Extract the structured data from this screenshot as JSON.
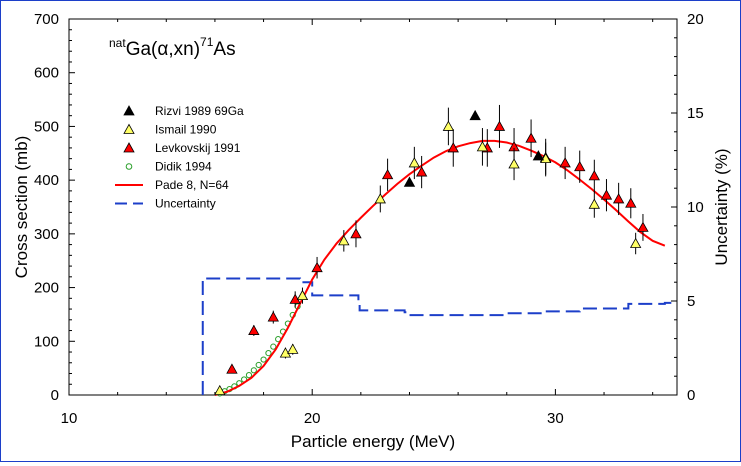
{
  "chart_data": {
    "type": "scatter",
    "title_parts": {
      "pre": "nat",
      "main": "Ga(α,xn)",
      "sup": "71",
      "post": "As"
    },
    "xlabel": "Particle energy (MeV)",
    "ylabel": "Cross section (mb)",
    "y2label": "Uncertainty (%)",
    "xlim": [
      10,
      35
    ],
    "ylim": [
      0,
      700
    ],
    "y2lim": [
      0,
      20
    ],
    "xticks": [
      "10",
      "20",
      "30"
    ],
    "yticks": [
      "0",
      "100",
      "200",
      "300",
      "400",
      "500",
      "600",
      "700"
    ],
    "y2ticks": [
      "0",
      "5",
      "10",
      "15",
      "20"
    ],
    "grid": false,
    "legend_position": "top-left",
    "colors": {
      "rizvi": "#000000",
      "ismail": "#ffff66",
      "levkovskij": "#ff0000",
      "didik": "#2ca02c",
      "pade": "#ff0000",
      "uncertainty": "#1c3fc9"
    },
    "series": [
      {
        "name": "Rizvi 1989 69Ga",
        "marker": "triangle-filled",
        "points": [
          [
            24.0,
            396
          ],
          [
            26.7,
            520
          ],
          [
            29.3,
            445
          ]
        ]
      },
      {
        "name": "Ismail 1990",
        "marker": "triangle-open-yellow",
        "points": [
          [
            16.2,
            8,
            5
          ],
          [
            18.9,
            78,
            10
          ],
          [
            19.2,
            85,
            10
          ],
          [
            19.6,
            185,
            15
          ],
          [
            21.3,
            287,
            20
          ],
          [
            22.8,
            365,
            25
          ],
          [
            24.2,
            432,
            30
          ],
          [
            25.6,
            500,
            35
          ],
          [
            27.0,
            462,
            35
          ],
          [
            28.3,
            430,
            30
          ],
          [
            29.6,
            440,
            30
          ],
          [
            31.6,
            355,
            25
          ],
          [
            33.3,
            282,
            20
          ]
        ]
      },
      {
        "name": "Levkovskij 1991",
        "marker": "triangle-filled-red",
        "points": [
          [
            16.7,
            48,
            5
          ],
          [
            17.6,
            120,
            10
          ],
          [
            18.4,
            145,
            12
          ],
          [
            19.3,
            178,
            15
          ],
          [
            20.2,
            237,
            20
          ],
          [
            21.8,
            300,
            25
          ],
          [
            23.1,
            410,
            30
          ],
          [
            24.5,
            415,
            30
          ],
          [
            25.8,
            460,
            35
          ],
          [
            27.2,
            460,
            35
          ],
          [
            27.7,
            500,
            40
          ],
          [
            28.3,
            462,
            35
          ],
          [
            29.0,
            478,
            35
          ],
          [
            29.6,
            442,
            35
          ],
          [
            30.4,
            432,
            30
          ],
          [
            31.0,
            425,
            30
          ],
          [
            31.6,
            408,
            30
          ],
          [
            32.1,
            372,
            30
          ],
          [
            32.6,
            365,
            30
          ],
          [
            33.1,
            357,
            28
          ],
          [
            33.6,
            312,
            25
          ]
        ]
      },
      {
        "name": "Didik 1994",
        "marker": "circle-open-green",
        "points": [
          [
            16.2,
            3
          ],
          [
            16.4,
            7
          ],
          [
            16.6,
            11
          ],
          [
            16.8,
            16
          ],
          [
            17.0,
            22
          ],
          [
            17.2,
            29
          ],
          [
            17.4,
            37
          ],
          [
            17.6,
            46
          ],
          [
            17.8,
            56
          ],
          [
            18.0,
            66
          ],
          [
            18.2,
            78
          ],
          [
            18.4,
            90
          ],
          [
            18.6,
            104
          ],
          [
            18.8,
            118
          ],
          [
            19.0,
            133
          ],
          [
            19.2,
            149
          ],
          [
            19.4,
            165
          ],
          [
            19.6,
            183
          ]
        ]
      },
      {
        "name": "Pade 8, N=64",
        "marker": "line-solid",
        "points": [
          [
            16.0,
            0
          ],
          [
            16.5,
            6
          ],
          [
            17.0,
            17
          ],
          [
            17.5,
            32
          ],
          [
            18.0,
            54
          ],
          [
            18.5,
            85
          ],
          [
            19.0,
            125
          ],
          [
            19.5,
            170
          ],
          [
            20.0,
            215
          ],
          [
            20.5,
            252
          ],
          [
            21.0,
            282
          ],
          [
            21.5,
            307
          ],
          [
            22.0,
            330
          ],
          [
            22.5,
            352
          ],
          [
            23.0,
            373
          ],
          [
            23.5,
            393
          ],
          [
            24.0,
            411
          ],
          [
            24.5,
            427
          ],
          [
            25.0,
            442
          ],
          [
            25.5,
            454
          ],
          [
            26.0,
            463
          ],
          [
            26.5,
            469
          ],
          [
            27.0,
            473
          ],
          [
            27.5,
            473
          ],
          [
            28.0,
            470
          ],
          [
            28.5,
            464
          ],
          [
            29.0,
            455
          ],
          [
            29.5,
            445
          ],
          [
            30.0,
            433
          ],
          [
            30.5,
            418
          ],
          [
            31.0,
            401
          ],
          [
            31.5,
            383
          ],
          [
            32.0,
            364
          ],
          [
            32.5,
            344
          ],
          [
            33.0,
            323
          ],
          [
            33.5,
            303
          ],
          [
            34.0,
            287
          ],
          [
            34.5,
            278
          ]
        ]
      },
      {
        "name": "Uncertainty",
        "marker": "line-dashed",
        "axis": "right",
        "points": [
          [
            15.5,
            0
          ],
          [
            15.5,
            6.2
          ],
          [
            19.5,
            6.2
          ],
          [
            19.5,
            6.0
          ],
          [
            20.0,
            6.0
          ],
          [
            20.0,
            5.3
          ],
          [
            21.9,
            5.3
          ],
          [
            21.9,
            5.0
          ],
          [
            21.95,
            5.0
          ],
          [
            21.95,
            4.5
          ],
          [
            23.8,
            4.5
          ],
          [
            23.8,
            4.4
          ],
          [
            23.9,
            4.4
          ],
          [
            23.9,
            4.25
          ],
          [
            28.0,
            4.25
          ],
          [
            28.0,
            4.35
          ],
          [
            29.5,
            4.35
          ],
          [
            29.5,
            4.45
          ],
          [
            31.0,
            4.45
          ],
          [
            31.0,
            4.6
          ],
          [
            33.0,
            4.6
          ],
          [
            33.0,
            4.85
          ],
          [
            34.5,
            4.85
          ],
          [
            34.5,
            4.9
          ],
          [
            35.0,
            4.9
          ]
        ]
      }
    ]
  }
}
